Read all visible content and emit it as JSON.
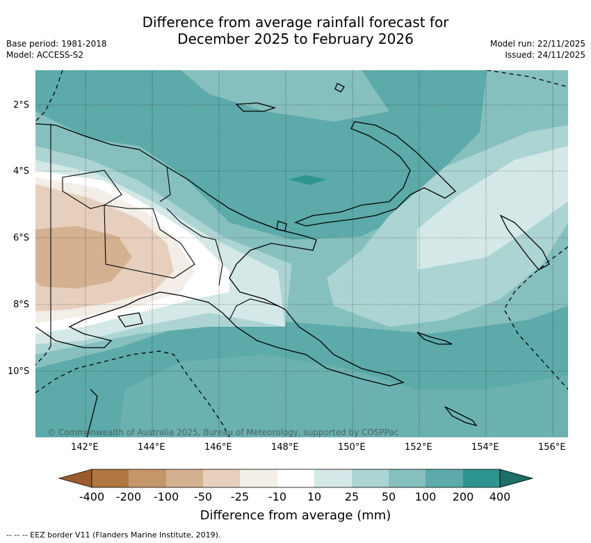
{
  "title_line1": "Difference from average rainfall forecast for",
  "title_line2": "December 2025 to February 2026",
  "base_period": "Base period: 1981-2018",
  "model": "Model: ACCESS-S2",
  "model_run": "Model run: 22/11/2025",
  "issued": "Issued: 24/11/2025",
  "lat_labels": [
    "2°S",
    "4°S",
    "6°S",
    "8°S",
    "10°S"
  ],
  "lon_labels": [
    "142°E",
    "144°E",
    "146°E",
    "148°E",
    "150°E",
    "152°E",
    "154°E",
    "156°E"
  ],
  "copyright": "© Commonwealth of Australia 2025, Bureau of Meteorology, supported by COSPPac",
  "colorbar": {
    "title": "Difference from average (mm)",
    "ticks": [
      "-400",
      "-200",
      "-100",
      "-50",
      "-25",
      "-10",
      "10",
      "25",
      "50",
      "100",
      "200",
      "400"
    ],
    "colors": [
      "#9a5c2a",
      "#b07840",
      "#c59668",
      "#d4b191",
      "#e6d0bd",
      "#f3eee7",
      "#ffffff",
      "#d4e9e7",
      "#acd4d2",
      "#85c0be",
      "#5caaa9",
      "#2e9590",
      "#1e6e6a"
    ]
  },
  "footnote": "--  --  -- EEZ border V11 (Flanders Marine Institute, 2019)."
}
